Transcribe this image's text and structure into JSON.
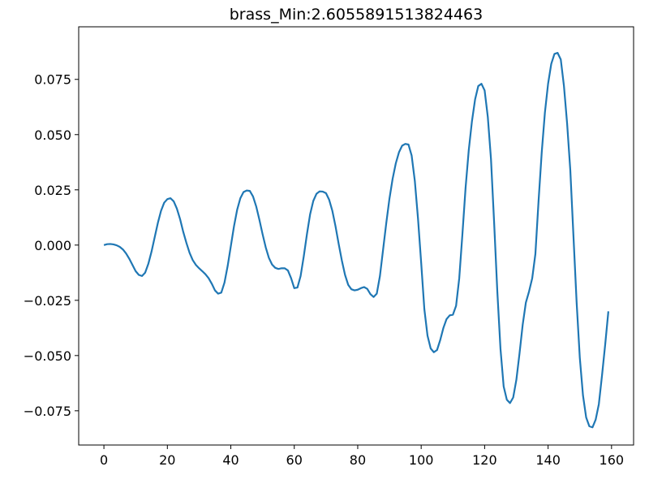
{
  "chart_data": {
    "type": "line",
    "title": "brass_Min:2.6055891513824463",
    "color": "#1f77b4",
    "x": [
      0,
      1,
      2,
      3,
      4,
      5,
      6,
      7,
      8,
      9,
      10,
      11,
      12,
      13,
      14,
      15,
      16,
      17,
      18,
      19,
      20,
      21,
      22,
      23,
      24,
      25,
      26,
      27,
      28,
      29,
      30,
      31,
      32,
      33,
      34,
      35,
      36,
      37,
      38,
      39,
      40,
      41,
      42,
      43,
      44,
      45,
      46,
      47,
      48,
      49,
      50,
      51,
      52,
      53,
      54,
      55,
      56,
      57,
      58,
      59,
      60,
      61,
      62,
      63,
      64,
      65,
      66,
      67,
      68,
      69,
      70,
      71,
      72,
      73,
      74,
      75,
      76,
      77,
      78,
      79,
      80,
      81,
      82,
      83,
      84,
      85,
      86,
      87,
      88,
      89,
      90,
      91,
      92,
      93,
      94,
      95,
      96,
      97,
      98,
      99,
      100,
      101,
      102,
      103,
      104,
      105,
      106,
      107,
      108,
      109,
      110,
      111,
      112,
      113,
      114,
      115,
      116,
      117,
      118,
      119,
      120,
      121,
      122,
      123,
      124,
      125,
      126,
      127,
      128,
      129,
      130,
      131,
      132,
      133,
      134,
      135,
      136,
      137,
      138,
      139,
      140,
      141,
      142,
      143,
      144,
      145,
      146,
      147,
      148,
      149,
      150,
      151,
      152,
      153,
      154,
      155,
      156,
      157,
      158,
      159
    ],
    "values": [
      0.0,
      0.0004,
      0.0005,
      0.0003,
      -0.0001,
      -0.0008,
      -0.002,
      -0.0038,
      -0.0062,
      -0.009,
      -0.0118,
      -0.0135,
      -0.014,
      -0.0125,
      -0.0085,
      -0.003,
      0.0035,
      0.01,
      0.0155,
      0.0192,
      0.0208,
      0.0212,
      0.0198,
      0.0165,
      0.0118,
      0.006,
      0.001,
      -0.0035,
      -0.0068,
      -0.009,
      -0.0105,
      -0.0118,
      -0.0132,
      -0.015,
      -0.0175,
      -0.0205,
      -0.022,
      -0.0215,
      -0.017,
      -0.0095,
      -0.0005,
      0.0085,
      0.016,
      0.0212,
      0.024,
      0.0247,
      0.0245,
      0.022,
      0.0175,
      0.0115,
      0.005,
      -0.001,
      -0.0058,
      -0.0088,
      -0.0103,
      -0.0108,
      -0.0105,
      -0.0105,
      -0.0115,
      -0.015,
      -0.0195,
      -0.0192,
      -0.014,
      -0.005,
      0.005,
      0.014,
      0.02,
      0.0232,
      0.0243,
      0.0242,
      0.0235,
      0.0205,
      0.0155,
      0.0085,
      0.0005,
      -0.007,
      -0.0135,
      -0.018,
      -0.02,
      -0.0205,
      -0.0202,
      -0.0195,
      -0.019,
      -0.0198,
      -0.0222,
      -0.0235,
      -0.022,
      -0.014,
      -0.002,
      0.01,
      0.021,
      0.03,
      0.037,
      0.042,
      0.045,
      0.0458,
      0.0455,
      0.0405,
      0.029,
      0.012,
      -0.008,
      -0.029,
      -0.041,
      -0.0468,
      -0.0485,
      -0.0475,
      -0.043,
      -0.0375,
      -0.0335,
      -0.0318,
      -0.0315,
      -0.0275,
      -0.015,
      0.005,
      0.026,
      0.043,
      0.056,
      0.066,
      0.072,
      0.073,
      0.07,
      0.058,
      0.039,
      0.01,
      -0.021,
      -0.047,
      -0.064,
      -0.07,
      -0.0715,
      -0.069,
      -0.061,
      -0.049,
      -0.036,
      -0.026,
      -0.021,
      -0.015,
      -0.004,
      0.02,
      0.042,
      0.06,
      0.073,
      0.082,
      0.0865,
      0.087,
      0.084,
      0.072,
      0.055,
      0.034,
      0.004,
      -0.026,
      -0.051,
      -0.068,
      -0.078,
      -0.082,
      -0.0825,
      -0.079,
      -0.072,
      -0.059,
      -0.045,
      -0.03
    ],
    "xlim": [
      -7.95,
      166.95
    ],
    "ylim": [
      -0.0905,
      0.0988
    ],
    "xticks": [
      0,
      20,
      40,
      60,
      80,
      100,
      120,
      140,
      160
    ],
    "yticks": [
      {
        "value": -0.075,
        "label": "−0.075"
      },
      {
        "value": -0.05,
        "label": "−0.050"
      },
      {
        "value": -0.025,
        "label": "−0.025"
      },
      {
        "value": 0,
        "label": "0.000"
      },
      {
        "value": 0.025,
        "label": "0.025"
      },
      {
        "value": 0.05,
        "label": "0.050"
      },
      {
        "value": 0.075,
        "label": "0.075"
      }
    ]
  }
}
